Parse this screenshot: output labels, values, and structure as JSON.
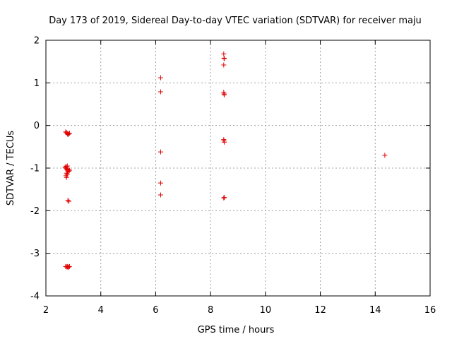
{
  "chart_data": {
    "type": "scatter",
    "title": "Day 173 of 2019, Sidereal Day-to-day VTEC variation (SDTVAR) for receiver maju",
    "xlabel": "GPS time / hours",
    "ylabel": "SDTVAR / TECUs",
    "xlim": [
      2,
      16
    ],
    "ylim": [
      -4,
      2
    ],
    "xticks": [
      2,
      4,
      6,
      8,
      10,
      12,
      14,
      16
    ],
    "yticks": [
      -4,
      -3,
      -2,
      -1,
      0,
      1,
      2
    ],
    "xtick_labels": [
      "2",
      "4",
      "6",
      "8",
      "10",
      "12",
      "14",
      "16"
    ],
    "ytick_labels": [
      "-4",
      "-3",
      "-2",
      "-1",
      "0",
      "1",
      "2"
    ],
    "grid": true,
    "marker": "+",
    "marker_color": "#e00000",
    "series": [
      {
        "name": "SDTVAR",
        "points": [
          [
            2.72,
            -0.15
          ],
          [
            2.75,
            -0.17
          ],
          [
            2.78,
            -0.19
          ],
          [
            2.8,
            -0.21
          ],
          [
            2.83,
            -0.2
          ],
          [
            2.86,
            -0.18
          ],
          [
            2.7,
            -0.98
          ],
          [
            2.72,
            -1.0
          ],
          [
            2.74,
            -0.96
          ],
          [
            2.76,
            -1.02
          ],
          [
            2.78,
            -1.05
          ],
          [
            2.8,
            -1.08
          ],
          [
            2.82,
            -1.03
          ],
          [
            2.84,
            -1.07
          ],
          [
            2.86,
            -1.05
          ],
          [
            2.75,
            -1.12
          ],
          [
            2.78,
            -1.15
          ],
          [
            2.73,
            -1.18
          ],
          [
            2.75,
            -1.22
          ],
          [
            2.78,
            -0.95
          ],
          [
            2.84,
            -1.78
          ],
          [
            2.8,
            -1.76
          ],
          [
            2.72,
            -3.31
          ],
          [
            2.75,
            -3.32
          ],
          [
            2.78,
            -3.31
          ],
          [
            2.8,
            -3.33
          ],
          [
            2.83,
            -3.32
          ],
          [
            2.86,
            -3.31
          ],
          [
            6.18,
            1.12
          ],
          [
            6.18,
            0.79
          ],
          [
            6.18,
            -0.62
          ],
          [
            6.18,
            -1.35
          ],
          [
            6.18,
            -1.63
          ],
          [
            8.48,
            1.68
          ],
          [
            8.49,
            1.58
          ],
          [
            8.5,
            1.57
          ],
          [
            8.48,
            1.42
          ],
          [
            8.48,
            0.78
          ],
          [
            8.49,
            0.74
          ],
          [
            8.5,
            0.72
          ],
          [
            8.48,
            -0.33
          ],
          [
            8.49,
            -0.36
          ],
          [
            8.5,
            -0.39
          ],
          [
            8.48,
            -1.7
          ],
          [
            8.5,
            -1.69
          ],
          [
            14.35,
            -0.7
          ]
        ]
      }
    ]
  }
}
